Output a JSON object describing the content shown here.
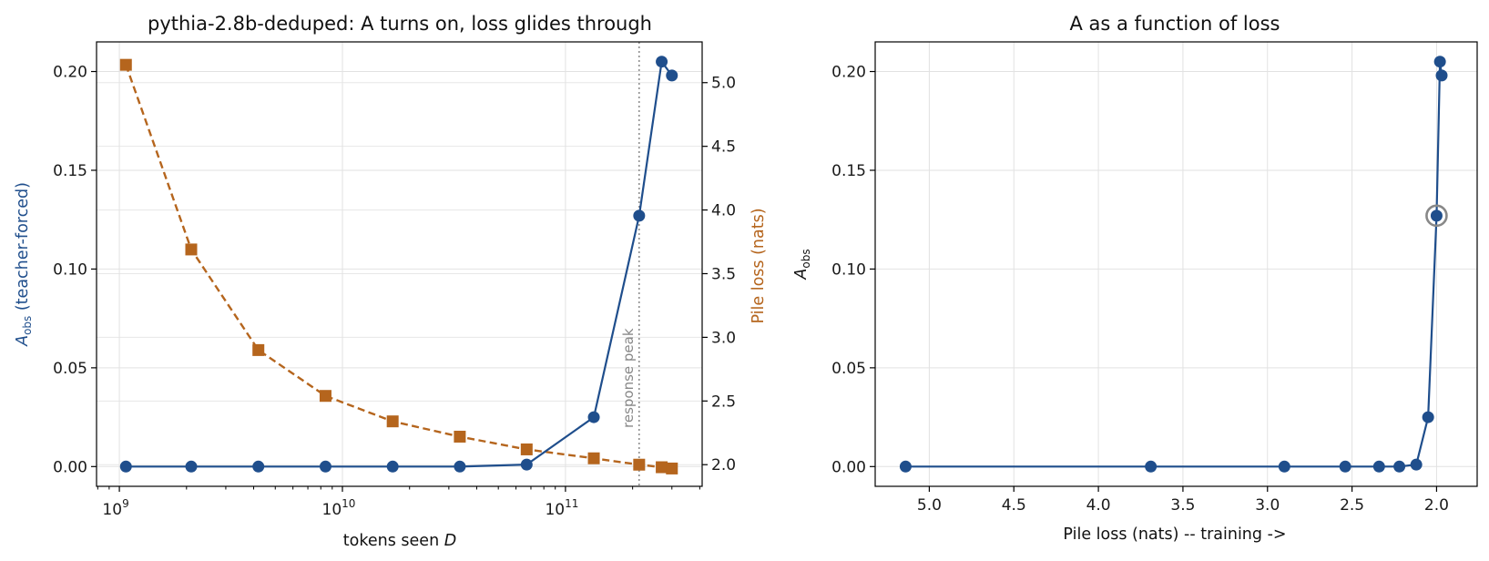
{
  "colors": {
    "a_obs": "#1f4e8c",
    "loss": "#b5651d",
    "marker": "#888888",
    "grid": "#e2e2e2",
    "axis": "#000000"
  },
  "chart_data": [
    {
      "type": "line",
      "title": "pythia-2.8b-deduped: A turns on, loss glides through",
      "xlabel": {
        "prefix": "tokens seen ",
        "var": "D"
      },
      "ylabel_left": {
        "main": "A",
        "sub": "obs",
        "rest": " (teacher-forced)"
      },
      "ylabel_right": "Pile loss (nats)",
      "xscale": "log",
      "xlim": [
        790000000.0,
        410000000000.0
      ],
      "ylim_left": [
        -0.01,
        0.215
      ],
      "ylim_right": [
        1.83,
        5.32
      ],
      "xticks": [
        {
          "base": "10",
          "exp": "9",
          "value": 1000000000.0
        },
        {
          "base": "10",
          "exp": "10",
          "value": 10000000000.0
        },
        {
          "base": "10",
          "exp": "11",
          "value": 100000000000.0
        }
      ],
      "yticks_left": [
        "0.00",
        "0.05",
        "0.10",
        "0.15",
        "0.20"
      ],
      "yticks_right": [
        "2.0",
        "2.5",
        "3.0",
        "3.5",
        "4.0",
        "4.5",
        "5.0"
      ],
      "vline": {
        "x": 214000000000.0,
        "label": "response peak"
      },
      "series": [
        {
          "axis": "left",
          "marker": "circle",
          "linestyle": "solid",
          "x": [
            1070000000.0,
            2100000000.0,
            4200000000.0,
            8400000000.0,
            16800000000.0,
            33600000000.0,
            67000000000.0,
            134000000000.0,
            214000000000.0,
            270000000000.0,
            300000000000.0
          ],
          "y": [
            0.0,
            0.0,
            0.0,
            0.0,
            0.0,
            0.0,
            0.001,
            0.025,
            0.127,
            0.205,
            0.198
          ]
        },
        {
          "axis": "right",
          "marker": "square",
          "linestyle": "dashed",
          "x": [
            1070000000.0,
            2100000000.0,
            4200000000.0,
            8400000000.0,
            16800000000.0,
            33600000000.0,
            67000000000.0,
            134000000000.0,
            214000000000.0,
            270000000000.0,
            300000000000.0
          ],
          "y": [
            5.14,
            3.69,
            2.9,
            2.54,
            2.34,
            2.22,
            2.12,
            2.05,
            2.0,
            1.98,
            1.97
          ]
        }
      ]
    },
    {
      "type": "line",
      "title": "A as a function of loss",
      "xlabel": "Pile loss (nats) -- training ->",
      "ylabel": {
        "main": "A",
        "sub": "obs"
      },
      "xlim": [
        5.32,
        1.76
      ],
      "ylim": [
        -0.01,
        0.215
      ],
      "xaxis_inverted": true,
      "xticks": [
        "5.0",
        "4.5",
        "4.0",
        "3.5",
        "3.0",
        "2.5",
        "2.0"
      ],
      "yticks": [
        "0.00",
        "0.05",
        "0.10",
        "0.15",
        "0.20"
      ],
      "highlight": {
        "x": 2.0,
        "y": 0.127
      },
      "series": [
        {
          "marker": "circle",
          "linestyle": "solid",
          "x": [
            5.14,
            3.69,
            2.9,
            2.54,
            2.34,
            2.22,
            2.12,
            2.05,
            2.0,
            1.98,
            1.97
          ],
          "y": [
            0.0,
            0.0,
            0.0,
            0.0,
            0.0,
            0.0,
            0.001,
            0.025,
            0.127,
            0.205,
            0.198
          ]
        }
      ]
    }
  ]
}
